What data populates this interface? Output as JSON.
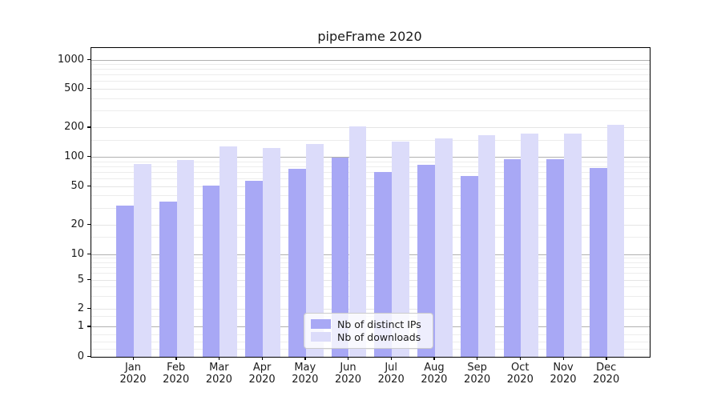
{
  "title": "pipeFrame 2020",
  "colors": {
    "distinct_ips_bar": "#a8a8f5",
    "downloads_bar": "#dcdcfa",
    "grid_decade": "#b0b0b0",
    "grid_minor": "#ececec",
    "grid_labeled": "#e4e4e4",
    "axis_line": "#000000",
    "text": "#1a1a1a",
    "legend_border": "#cccccc"
  },
  "chart_data": {
    "type": "bar",
    "title": "pipeFrame 2020",
    "categories": [
      "Jan 2020",
      "Feb 2020",
      "Mar 2020",
      "Apr 2020",
      "May 2020",
      "Jun 2020",
      "Jul 2020",
      "Aug 2020",
      "Sep 2020",
      "Oct 2020",
      "Nov 2020",
      "Dec 2020"
    ],
    "x_tick_months": [
      "Jan",
      "Feb",
      "Mar",
      "Apr",
      "May",
      "Jun",
      "Jul",
      "Aug",
      "Sep",
      "Oct",
      "Nov",
      "Dec"
    ],
    "x_tick_year": "2020",
    "series": [
      {
        "name": "Nb of distinct IPs",
        "color": "#a8a8f5",
        "values": [
          32,
          35,
          51,
          57,
          76,
          100,
          71,
          83,
          64,
          96,
          96,
          78
        ]
      },
      {
        "name": "Nb of downloads",
        "color": "#dcdcfa",
        "values": [
          85,
          94,
          129,
          125,
          138,
          207,
          144,
          157,
          167,
          174,
          174,
          216
        ]
      }
    ],
    "xlabel": "",
    "ylabel": "",
    "y_axis": {
      "scale": "asinh (linear 0-1, logarithmic above)",
      "tick_values": [
        0,
        1,
        2,
        5,
        10,
        20,
        50,
        100,
        200,
        500,
        1000
      ],
      "tick_labels": [
        "0",
        "1",
        "2",
        "5",
        "10",
        "20",
        "50",
        "100",
        "200",
        "500",
        "1000"
      ],
      "decade_ticks": [
        1,
        10,
        100,
        1000
      ],
      "minor_gridlines": [
        0.25,
        0.5,
        0.75,
        1.5,
        3,
        4,
        6,
        7,
        8,
        9,
        15,
        30,
        40,
        60,
        70,
        80,
        90,
        150,
        300,
        400,
        600,
        700,
        800,
        900
      ],
      "ylim": [
        0,
        1000
      ]
    },
    "grid": true,
    "legend": {
      "position": "lower center",
      "entries": [
        "Nb of distinct IPs",
        "Nb of downloads"
      ]
    }
  }
}
